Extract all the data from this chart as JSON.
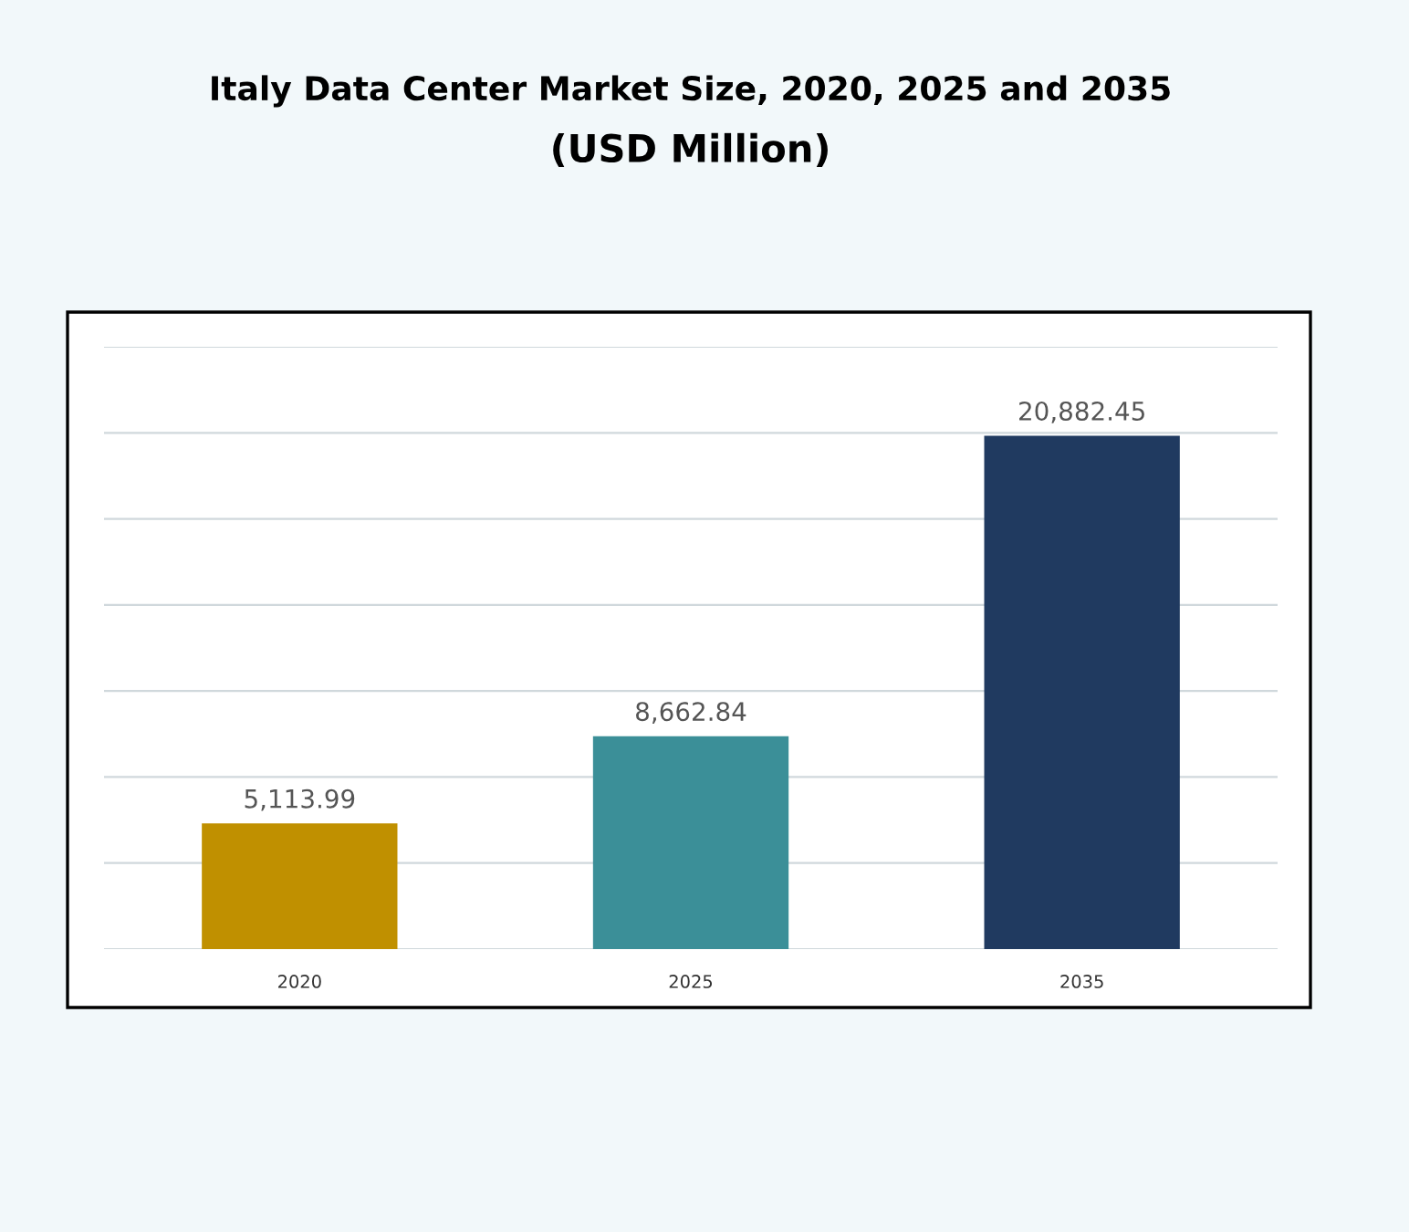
{
  "chart_data": {
    "type": "bar",
    "title": "Italy Data Center Market Size, 2020, 2025 and 2035",
    "subtitle": "(USD Million)",
    "categories": [
      "2020",
      "2025",
      "2035"
    ],
    "values": [
      5113.99,
      8662.84,
      20882.45
    ],
    "colors": [
      "#c09000",
      "#3b8f98",
      "#203a60"
    ],
    "value_labels": [
      "5,113.99",
      "8,662.84",
      "20,882.45"
    ],
    "ylim": [
      0,
      24500
    ],
    "yticks": [
      {
        "value": 0,
        "label": null
      },
      {
        "value": 3500,
        "label": null
      },
      {
        "value": 7000,
        "label": null
      },
      {
        "value": 10500,
        "label": null
      },
      {
        "value": 14000,
        "label": null
      },
      {
        "value": 17500,
        "label": null
      },
      {
        "value": 21000,
        "label": null
      },
      {
        "value": 24500,
        "label": null
      }
    ],
    "grid": "y",
    "tick_labels": "x"
  }
}
